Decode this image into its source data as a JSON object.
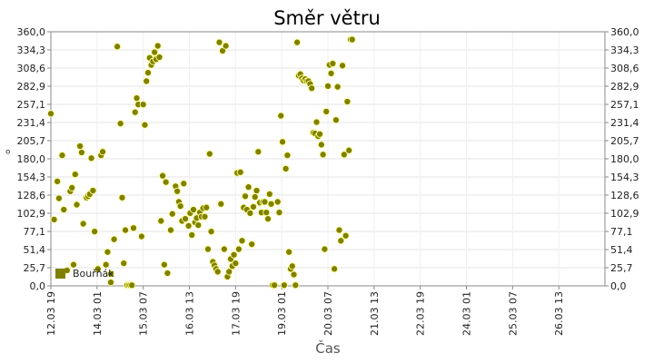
{
  "chart_data": {
    "type": "scatter",
    "title": "Směr větru",
    "xlabel": "Čas",
    "ylabel": "°",
    "ylim": [
      0,
      360
    ],
    "yticks": [
      "0,0",
      "25,7",
      "51,4",
      "77,1",
      "102,9",
      "128,6",
      "154,3",
      "180,0",
      "205,7",
      "231,4",
      "257,1",
      "282,9",
      "308,6",
      "334,3",
      "360,0"
    ],
    "xticks": [
      "12.03 19",
      "14.03 01",
      "15.03 07",
      "16.03 13",
      "17.03 19",
      "19.03 01",
      "20.03 07",
      "21.03 13",
      "22.03 19",
      "24.03 01",
      "25.03 07",
      "26.03 13"
    ],
    "xlim_hours": [
      0,
      342
    ],
    "grid": true,
    "legend_position": "bottom-left",
    "series_color": "#808000",
    "series": [
      {
        "name": "Bouřňák",
        "points": [
          [
            0,
            244
          ],
          [
            2,
            94
          ],
          [
            4,
            148
          ],
          [
            5,
            124
          ],
          [
            7,
            185
          ],
          [
            8,
            108
          ],
          [
            10,
            22
          ],
          [
            12,
            134
          ],
          [
            13,
            139
          ],
          [
            14,
            30
          ],
          [
            15,
            158
          ],
          [
            16,
            115
          ],
          [
            18,
            198
          ],
          [
            19,
            189
          ],
          [
            20,
            88
          ],
          [
            22,
            125
          ],
          [
            23,
            127
          ],
          [
            24,
            130
          ],
          [
            25,
            181
          ],
          [
            26,
            135
          ],
          [
            27,
            77
          ],
          [
            29,
            24
          ],
          [
            31,
            185
          ],
          [
            32,
            190
          ],
          [
            34,
            30
          ],
          [
            35,
            48
          ],
          [
            37,
            5
          ],
          [
            37,
            17
          ],
          [
            39,
            66
          ],
          [
            41,
            339
          ],
          [
            43,
            230
          ],
          [
            44,
            125
          ],
          [
            45,
            32
          ],
          [
            46,
            79
          ],
          [
            47,
            1
          ],
          [
            48,
            1
          ],
          [
            49,
            1
          ],
          [
            50,
            1
          ],
          [
            51,
            82
          ],
          [
            52,
            246
          ],
          [
            53,
            266
          ],
          [
            54,
            257
          ],
          [
            56,
            70
          ],
          [
            57,
            257
          ],
          [
            58,
            228
          ],
          [
            59,
            290
          ],
          [
            60,
            302
          ],
          [
            61,
            323
          ],
          [
            62,
            313
          ],
          [
            63,
            318
          ],
          [
            64,
            331
          ],
          [
            65,
            321
          ],
          [
            66,
            340
          ],
          [
            67,
            324
          ],
          [
            68,
            92
          ],
          [
            69,
            156
          ],
          [
            70,
            30
          ],
          [
            71,
            147
          ],
          [
            72,
            18
          ],
          [
            74,
            79
          ],
          [
            75,
            102
          ],
          [
            77,
            141
          ],
          [
            78,
            134
          ],
          [
            79,
            119
          ],
          [
            80,
            113
          ],
          [
            81,
            92
          ],
          [
            82,
            145
          ],
          [
            83,
            95
          ],
          [
            85,
            85
          ],
          [
            86,
            103
          ],
          [
            87,
            72
          ],
          [
            88,
            108
          ],
          [
            89,
            90
          ],
          [
            90,
            96
          ],
          [
            91,
            86
          ],
          [
            92,
            104
          ],
          [
            93,
            98
          ],
          [
            94,
            110
          ],
          [
            95,
            98
          ],
          [
            96,
            111
          ],
          [
            97,
            52
          ],
          [
            98,
            187
          ],
          [
            99,
            77
          ],
          [
            100,
            34
          ],
          [
            101,
            29
          ],
          [
            102,
            24
          ],
          [
            103,
            20
          ],
          [
            104,
            345
          ],
          [
            105,
            116
          ],
          [
            106,
            333
          ],
          [
            107,
            52
          ],
          [
            108,
            340
          ],
          [
            109,
            13
          ],
          [
            110,
            20
          ],
          [
            111,
            38
          ],
          [
            112,
            28
          ],
          [
            113,
            44
          ],
          [
            114,
            32
          ],
          [
            115,
            160
          ],
          [
            116,
            52
          ],
          [
            117,
            161
          ],
          [
            118,
            64
          ],
          [
            119,
            111
          ],
          [
            120,
            127
          ],
          [
            121,
            108
          ],
          [
            122,
            140
          ],
          [
            123,
            103
          ],
          [
            124,
            59
          ],
          [
            125,
            112
          ],
          [
            126,
            126
          ],
          [
            127,
            135
          ],
          [
            128,
            190
          ],
          [
            129,
            118
          ],
          [
            130,
            104
          ],
          [
            131,
            119
          ],
          [
            132,
            119
          ],
          [
            133,
            104
          ],
          [
            134,
            95
          ],
          [
            135,
            130
          ],
          [
            136,
            116
          ],
          [
            137,
            1
          ],
          [
            138,
            1
          ],
          [
            140,
            119
          ],
          [
            141,
            104
          ],
          [
            142,
            241
          ],
          [
            143,
            204
          ],
          [
            144,
            1
          ],
          [
            145,
            166
          ],
          [
            146,
            185
          ],
          [
            147,
            48
          ],
          [
            148,
            24
          ],
          [
            149,
            28
          ],
          [
            150,
            16
          ],
          [
            151,
            1
          ],
          [
            152,
            345
          ],
          [
            153,
            298
          ],
          [
            154,
            300
          ],
          [
            155,
            294
          ],
          [
            156,
            291
          ],
          [
            157,
            293
          ],
          [
            158,
            290
          ],
          [
            159,
            290
          ],
          [
            160,
            286
          ],
          [
            161,
            280
          ],
          [
            162,
            217
          ],
          [
            163,
            216
          ],
          [
            164,
            232
          ],
          [
            165,
            212
          ],
          [
            166,
            215
          ],
          [
            167,
            200
          ],
          [
            168,
            186
          ],
          [
            169,
            52
          ],
          [
            170,
            247
          ],
          [
            171,
            283
          ],
          [
            172,
            313
          ],
          [
            173,
            301
          ],
          [
            174,
            315
          ],
          [
            175,
            24
          ],
          [
            176,
            235
          ],
          [
            177,
            282
          ],
          [
            178,
            79
          ],
          [
            179,
            64
          ],
          [
            180,
            312
          ],
          [
            181,
            186
          ],
          [
            182,
            71
          ],
          [
            183,
            261
          ],
          [
            184,
            192
          ],
          [
            185,
            349
          ],
          [
            186,
            349
          ]
        ]
      }
    ]
  }
}
